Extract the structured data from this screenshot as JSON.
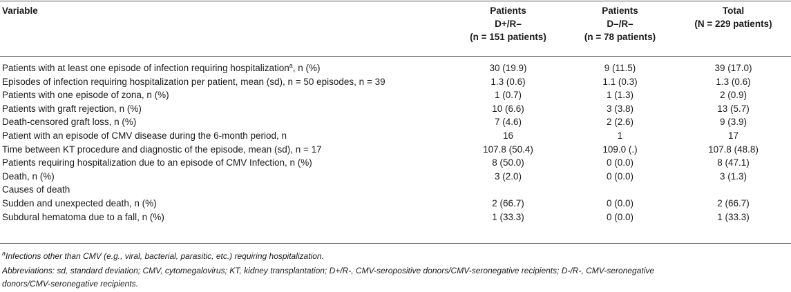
{
  "header": {
    "variable": "Variable",
    "col1": [
      "Patients",
      "D+/R–",
      "(n = 151 patients)"
    ],
    "col2": [
      "Patients",
      "D–/R–",
      "(n = 78 patients)"
    ],
    "col3": [
      "Total",
      "(N = 229 patients)"
    ]
  },
  "rows": [
    {
      "label": "Patients with at least one episode of infection requiring hospitalization",
      "sup": "a",
      "suffix": ", n (%)",
      "v1": "30 (19.9)",
      "v2": "9 (11.5)",
      "v3": "39 (17.0)"
    },
    {
      "label": "Episodes of infection requiring hospitalization per patient, mean (sd), n = 50 episodes, n = 39",
      "v1": "1.3 (0.6)",
      "v2": "1.1 (0.3)",
      "v3": "1.3 (0.6)"
    },
    {
      "label": "Patients with one episode of zona, n (%)",
      "v1": "1 (0.7)",
      "v2": "1 (1.3)",
      "v3": "2 (0.9)"
    },
    {
      "label": "Patients with graft rejection, n (%)",
      "v1": "10 (6.6)",
      "v2": "3 (3.8)",
      "v3": "13 (5.7)"
    },
    {
      "label": "Death-censored graft loss, n (%)",
      "v1": "7 (4.6)",
      "v2": "2 (2.6)",
      "v3": "9 (3.9)"
    },
    {
      "label": "Patient with an episode of CMV disease during the 6-month period, n",
      "v1": "16",
      "v2": "1",
      "v3": "17"
    },
    {
      "label": "Time between KT procedure and diagnostic of the episode, mean (sd), n = 17",
      "v1": "107.8 (50.4)",
      "v2": "109.0 (.)",
      "v3": "107.8 (48.8)"
    },
    {
      "label": "Patients requiring hospitalization due to an episode of CMV Infection, n (%)",
      "v1": "8 (50.0)",
      "v2": "0 (0.0)",
      "v3": "8 (47.1)"
    },
    {
      "label": "Death, n (%)",
      "v1": "3 (2.0)",
      "v2": "0 (0.0)",
      "v3": "3 (1.3)"
    },
    {
      "label": "Causes of death",
      "v1": "",
      "v2": "",
      "v3": ""
    },
    {
      "label": "Sudden and unexpected death, n (%)",
      "v1": "2 (66.7)",
      "v2": "0 (0.0)",
      "v3": "2 (66.7)"
    },
    {
      "label": "Subdural hematoma due to a fall, n (%)",
      "v1": "1 (33.3)",
      "v2": "0 (0.0)",
      "v3": "1 (33.3)"
    }
  ],
  "footnotes": {
    "a_mark": "a",
    "a_text": "Infections other than CMV (e.g., viral, bacterial, parasitic, etc.) requiring hospitalization.",
    "abbreviations_1": "Abbreviations: sd, standard deviation; CMV, cytomegalovirus; KT, kidney transplantation; D+/R-, CMV-seropositive donors/CMV-seronegative recipients; D-/R-, CMV-seronegative",
    "abbreviations_2": "donors/CMV-seronegative recipients."
  }
}
